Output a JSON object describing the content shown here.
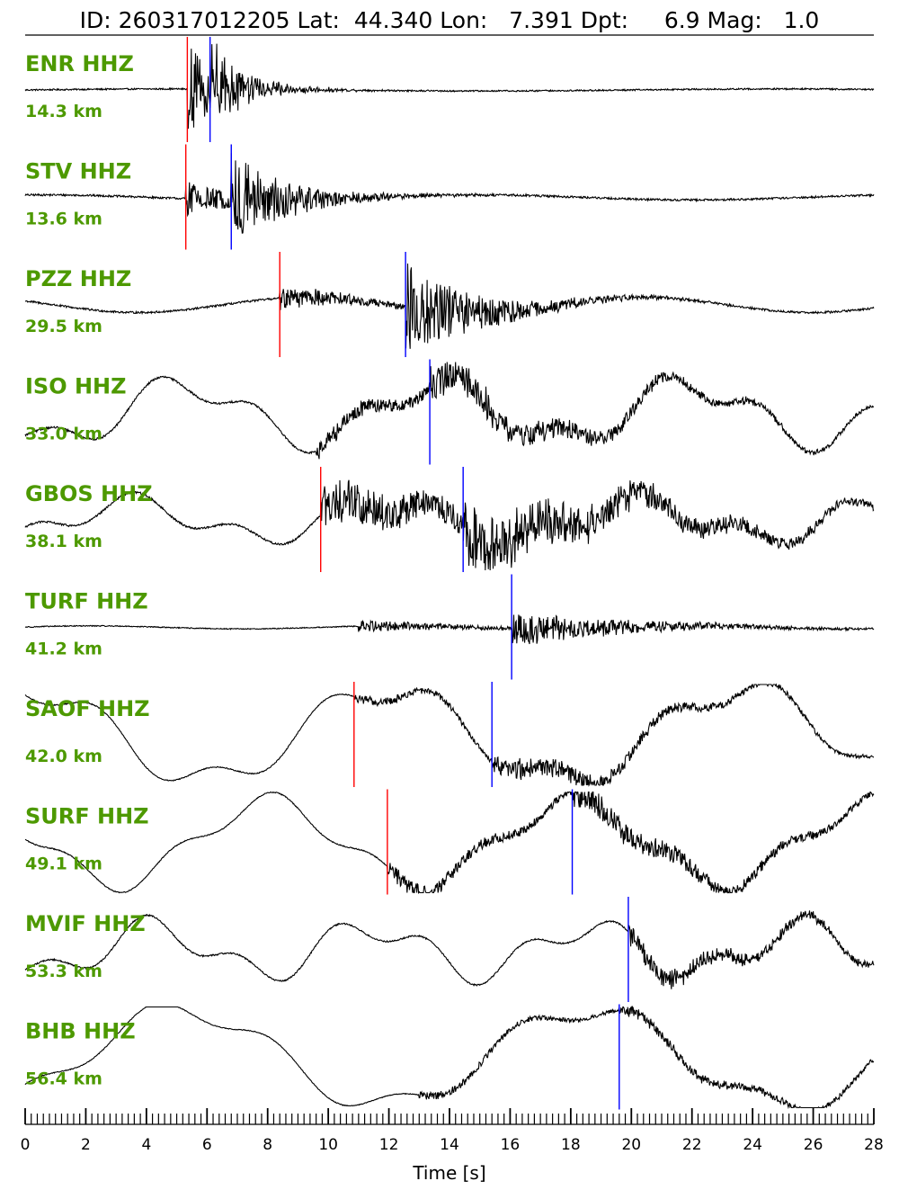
{
  "header": {
    "id_label": "ID:",
    "event_id": "260317012205",
    "lat_label": "Lat:",
    "lat": "44.340",
    "lon_label": "Lon:",
    "lon": "7.391",
    "depth_label": "Dpt:",
    "depth": "6.9",
    "mag_label": "Mag:",
    "mag": "1.0"
  },
  "chart_data": {
    "type": "line",
    "title": "ID: 260317012205 Lat:  44.340 Lon:   7.391 Dpt:     6.9 Mag:   1.0",
    "xlabel": "Time [s]",
    "xlim": [
      0,
      28
    ],
    "xticks": [
      "0",
      "2",
      "4",
      "6",
      "8",
      "10",
      "12",
      "14",
      "16",
      "18",
      "20",
      "22",
      "24",
      "26",
      "28"
    ],
    "minor_tick_step": 0.2,
    "label_color": "#4d9900",
    "p_pick_color": "#ff0000",
    "s_pick_color": "#0000ff",
    "trace_color": "#000000",
    "traces": [
      {
        "station": "ENR HHZ",
        "distance": "14.3 km",
        "p_pick": 5.35,
        "s_pick": 6.1,
        "onset": 5.35,
        "noise_amp": 0.015,
        "event_amp": 0.9,
        "s_amp": 0.7,
        "decay": 1.2,
        "lowfreq": [
          [
            0.02,
            0.05
          ]
        ]
      },
      {
        "station": "STV HHZ",
        "distance": "13.6 km",
        "p_pick": 5.3,
        "s_pick": 6.8,
        "onset": 5.3,
        "noise_amp": 0.02,
        "event_amp": 0.35,
        "s_amp": 0.85,
        "decay": 2.0,
        "lowfreq": [
          [
            0.05,
            0.07
          ]
        ]
      },
      {
        "station": "PZZ HHZ",
        "distance": "29.5 km",
        "p_pick": 8.4,
        "s_pick": 12.55,
        "onset": 8.4,
        "noise_amp": 0.02,
        "event_amp": 0.25,
        "s_amp": 0.9,
        "decay": 2.5,
        "lowfreq": [
          [
            0.15,
            0.09
          ]
        ]
      },
      {
        "station": "ISO HHZ",
        "distance": "33.0 km",
        "p_pick": null,
        "s_pick": 13.35,
        "onset": 9.6,
        "noise_amp": 0.02,
        "event_amp": 0.2,
        "s_amp": 0.35,
        "decay": 6.0,
        "lowfreq": [
          [
            0.55,
            0.12
          ],
          [
            0.25,
            0.3
          ]
        ]
      },
      {
        "station": "GBOS HHZ",
        "distance": "38.1 km",
        "p_pick": 9.75,
        "s_pick": 14.45,
        "onset": 9.75,
        "noise_amp": 0.02,
        "event_amp": 0.5,
        "s_amp": 0.65,
        "decay": 6.0,
        "lowfreq": [
          [
            0.35,
            0.12
          ],
          [
            0.2,
            0.3
          ]
        ]
      },
      {
        "station": "TURF HHZ",
        "distance": "41.2 km",
        "p_pick": null,
        "s_pick": 16.05,
        "onset": 11.0,
        "noise_amp": 0.01,
        "event_amp": 0.12,
        "s_amp": 0.35,
        "decay": 4.0,
        "lowfreq": [
          [
            0.03,
            0.1
          ]
        ]
      },
      {
        "station": "SAOF HHZ",
        "distance": "42.0 km",
        "p_pick": 10.85,
        "s_pick": 15.4,
        "onset": 10.85,
        "noise_amp": 0.01,
        "event_amp": 0.1,
        "s_amp": 0.25,
        "decay": 6.0,
        "lowfreq": [
          [
            0.9,
            0.085
          ],
          [
            0.25,
            0.27
          ]
        ]
      },
      {
        "station": "SURF HHZ",
        "distance": "49.1 km",
        "p_pick": 11.95,
        "s_pick": 18.05,
        "onset": 11.95,
        "noise_amp": 0.01,
        "event_amp": 0.18,
        "s_amp": 0.3,
        "decay": 6.0,
        "lowfreq": [
          [
            0.8,
            0.1
          ],
          [
            0.2,
            0.3
          ]
        ]
      },
      {
        "station": "MVIF HHZ",
        "distance": "53.3 km",
        "p_pick": null,
        "s_pick": 19.9,
        "onset": 19.9,
        "noise_amp": 0.015,
        "event_amp": 0.15,
        "s_amp": 0.15,
        "decay": 6.0,
        "lowfreq": [
          [
            0.45,
            0.14
          ],
          [
            0.25,
            0.32
          ]
        ]
      },
      {
        "station": "BHB HHZ",
        "distance": "56.4 km",
        "p_pick": null,
        "s_pick": 19.6,
        "onset": 13.0,
        "noise_amp": 0.008,
        "event_amp": 0.08,
        "s_amp": 0.12,
        "decay": 8.0,
        "lowfreq": [
          [
            0.95,
            0.075
          ],
          [
            0.2,
            0.25
          ]
        ]
      }
    ]
  }
}
